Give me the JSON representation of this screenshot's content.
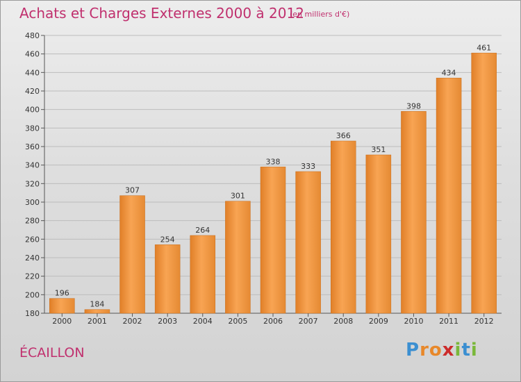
{
  "header": {
    "title": "Achats et Charges Externes 2000 à 2012",
    "subtitle": "(en milliers d'€)"
  },
  "footer": {
    "commune": "ÉCAILLON",
    "logo_letters": [
      "P",
      "r",
      "o",
      "x",
      "i",
      "t",
      "i"
    ],
    "logo_colors": [
      "#3b8fd1",
      "#e8882a",
      "#e8882a",
      "#cc2b2b",
      "#7ab83a",
      "#3b8fd1",
      "#7ab83a"
    ]
  },
  "colors": {
    "title": "#c0306e",
    "bar_light": "#f7a24f",
    "bar_dark": "#e0812a"
  },
  "chart_data": {
    "type": "bar",
    "title": "Achats et Charges Externes 2000 à 2012",
    "subtitle": "(en milliers d'€)",
    "categories": [
      "2000",
      "2001",
      "2002",
      "2003",
      "2004",
      "2005",
      "2006",
      "2007",
      "2008",
      "2009",
      "2010",
      "2011",
      "2012"
    ],
    "values": [
      196,
      184,
      307,
      254,
      264,
      301,
      338,
      333,
      366,
      351,
      398,
      434,
      461
    ],
    "yticks": [
      180,
      200,
      220,
      240,
      260,
      280,
      300,
      320,
      340,
      360,
      380,
      400,
      420,
      440,
      460,
      480
    ],
    "ylim": [
      180,
      480
    ],
    "grid": true,
    "legend": "none"
  }
}
